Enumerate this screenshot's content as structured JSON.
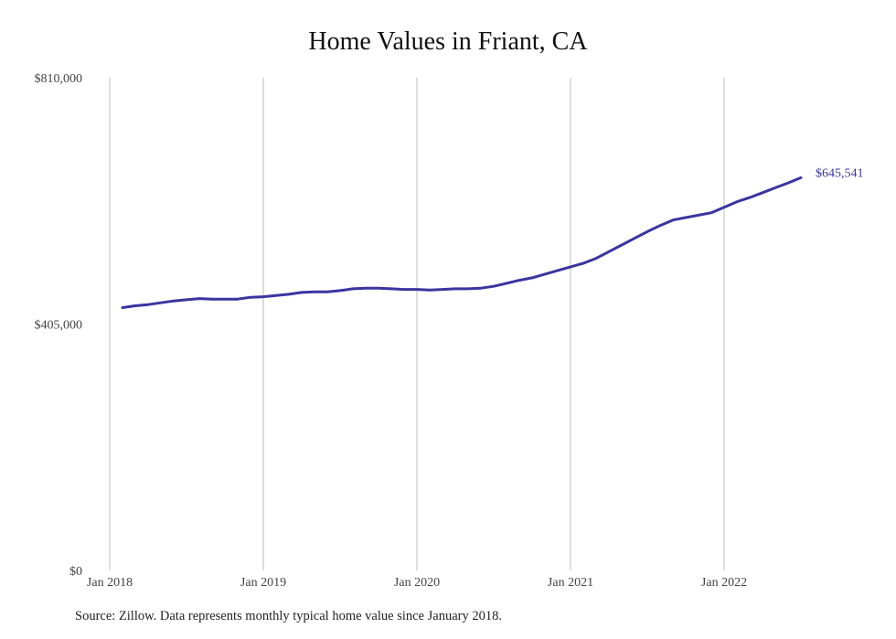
{
  "chart_data": {
    "type": "line",
    "title": "Home Values in Friant, CA",
    "xlabel": "",
    "ylabel": "",
    "ylim": [
      0,
      810000
    ],
    "y_ticks": [
      {
        "value": 0,
        "label": "$0"
      },
      {
        "value": 405000,
        "label": "$405,000"
      },
      {
        "value": 810000,
        "label": "$810,000"
      }
    ],
    "x_ticks": [
      {
        "value": "2018-01",
        "label": "Jan 2018"
      },
      {
        "value": "2019-01",
        "label": "Jan 2019"
      },
      {
        "value": "2020-01",
        "label": "Jan 2020"
      },
      {
        "value": "2021-01",
        "label": "Jan 2021"
      },
      {
        "value": "2022-01",
        "label": "Jan 2022"
      }
    ],
    "grid": "vertical",
    "line_color": "#3a35a0",
    "end_label": "$645,541",
    "series": [
      {
        "x": [
          "2018-02",
          "2018-03",
          "2018-04",
          "2018-05",
          "2018-06",
          "2018-07",
          "2018-08",
          "2018-09",
          "2018-10",
          "2018-11",
          "2018-12",
          "2019-01",
          "2019-02",
          "2019-03",
          "2019-04",
          "2019-05",
          "2019-06",
          "2019-07",
          "2019-08",
          "2019-09",
          "2019-10",
          "2019-11",
          "2019-12",
          "2020-01",
          "2020-02",
          "2020-03",
          "2020-04",
          "2020-05",
          "2020-06",
          "2020-07",
          "2020-08",
          "2020-09",
          "2020-10",
          "2020-11",
          "2020-12",
          "2021-01",
          "2021-02",
          "2021-03",
          "2021-04",
          "2021-05",
          "2021-06",
          "2021-07",
          "2021-08",
          "2021-09",
          "2021-10",
          "2021-11",
          "2021-12",
          "2022-01",
          "2022-02",
          "2022-03",
          "2022-04",
          "2022-05",
          "2022-06",
          "2022-07"
        ],
        "values": [
          432000,
          435000,
          437000,
          440000,
          443000,
          445000,
          447000,
          446000,
          446000,
          446000,
          449000,
          450000,
          452000,
          454000,
          457000,
          458000,
          458000,
          460000,
          463000,
          464000,
          464000,
          463000,
          462000,
          462000,
          461000,
          462000,
          463000,
          463000,
          464000,
          467000,
          472000,
          477000,
          481000,
          487000,
          493000,
          499000,
          505000,
          513000,
          524000,
          535000,
          546000,
          557000,
          567000,
          576000,
          580000,
          584000,
          588000,
          597000,
          606000,
          613000,
          621000,
          629000,
          637000,
          645541
        ]
      }
    ]
  },
  "source_note": "Source: Zillow. Data represents monthly typical home value since January 2018."
}
